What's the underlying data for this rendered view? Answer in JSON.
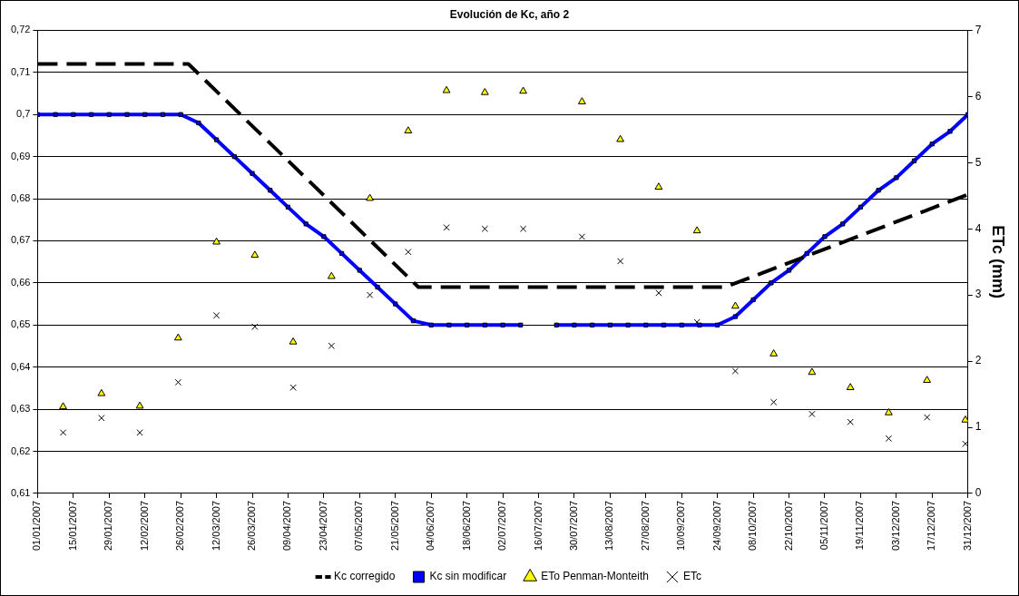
{
  "chart_data": {
    "type": "line",
    "title": "Evolución de Kc, año 2",
    "y2label": "ETc (mm)",
    "xlim": [
      "2007-01-01",
      "2007-12-31"
    ],
    "xticks": [
      {
        "value": "2007-01-01",
        "label": "01/01/2007"
      },
      {
        "value": "2007-01-15",
        "label": "15/01/2007"
      },
      {
        "value": "2007-01-29",
        "label": "29/01/2007"
      },
      {
        "value": "2007-02-12",
        "label": "12/02/2007"
      },
      {
        "value": "2007-02-26",
        "label": "26/02/2007"
      },
      {
        "value": "2007-03-12",
        "label": "12/03/2007"
      },
      {
        "value": "2007-03-26",
        "label": "26/03/2007"
      },
      {
        "value": "2007-04-09",
        "label": "09/04/2007"
      },
      {
        "value": "2007-04-23",
        "label": "23/04/2007"
      },
      {
        "value": "2007-05-07",
        "label": "07/05/2007"
      },
      {
        "value": "2007-05-21",
        "label": "21/05/2007"
      },
      {
        "value": "2007-06-04",
        "label": "04/06/2007"
      },
      {
        "value": "2007-06-18",
        "label": "18/06/2007"
      },
      {
        "value": "2007-07-02",
        "label": "02/07/2007"
      },
      {
        "value": "2007-07-16",
        "label": "16/07/2007"
      },
      {
        "value": "2007-07-30",
        "label": "30/07/2007"
      },
      {
        "value": "2007-08-13",
        "label": "13/08/2007"
      },
      {
        "value": "2007-08-27",
        "label": "27/08/2007"
      },
      {
        "value": "2007-09-10",
        "label": "10/09/2007"
      },
      {
        "value": "2007-09-24",
        "label": "24/09/2007"
      },
      {
        "value": "2007-10-08",
        "label": "08/10/2007"
      },
      {
        "value": "2007-10-22",
        "label": "22/10/2007"
      },
      {
        "value": "2007-11-05",
        "label": "05/11/2007"
      },
      {
        "value": "2007-11-19",
        "label": "19/11/2007"
      },
      {
        "value": "2007-12-03",
        "label": "03/12/2007"
      },
      {
        "value": "2007-12-17",
        "label": "17/12/2007"
      },
      {
        "value": "2007-12-31",
        "label": "31/12/2007"
      }
    ],
    "ylim": [
      0.61,
      0.72
    ],
    "yticks": [
      {
        "value": 0.61,
        "label": "0,61"
      },
      {
        "value": 0.62,
        "label": "0,62"
      },
      {
        "value": 0.63,
        "label": "0,63"
      },
      {
        "value": 0.64,
        "label": "0,64"
      },
      {
        "value": 0.65,
        "label": "0,65"
      },
      {
        "value": 0.66,
        "label": "0,66"
      },
      {
        "value": 0.67,
        "label": "0,67"
      },
      {
        "value": 0.68,
        "label": "0,68"
      },
      {
        "value": 0.69,
        "label": "0,69"
      },
      {
        "value": 0.7,
        "label": "0,7"
      },
      {
        "value": 0.71,
        "label": "0,71"
      },
      {
        "value": 0.72,
        "label": "0,72"
      }
    ],
    "y2lim": [
      0,
      7
    ],
    "y2ticks": [
      0,
      1,
      2,
      3,
      4,
      5,
      6,
      7
    ],
    "grid": "y",
    "legend": "bottom",
    "series": [
      {
        "name": "Kc corregido",
        "type": "line",
        "color": "#000000",
        "line_style": "dashed",
        "marker": "none",
        "x": [
          "2007-01-01",
          "2007-03-01",
          "2007-05-30",
          "2007-09-27",
          "2007-12-31"
        ],
        "values": [
          0.712,
          0.712,
          0.659,
          0.659,
          0.681
        ]
      },
      {
        "name": "Kc sin modificar",
        "type": "line",
        "color": "#0000ff",
        "line_style": "solid",
        "marker": "square",
        "x": [
          "2007-01-01",
          "2007-01-08",
          "2007-01-15",
          "2007-01-22",
          "2007-01-29",
          "2007-02-05",
          "2007-02-12",
          "2007-02-19",
          "2007-02-26",
          "2007-03-05",
          "2007-03-12",
          "2007-03-19",
          "2007-03-26",
          "2007-04-02",
          "2007-04-09",
          "2007-04-16",
          "2007-04-23",
          "2007-04-30",
          "2007-05-07",
          "2007-05-14",
          "2007-05-21",
          "2007-05-28",
          "2007-06-04",
          "2007-06-11",
          "2007-06-18",
          "2007-06-25",
          "2007-07-02",
          "2007-07-09",
          "2007-07-16",
          "2007-07-23",
          "2007-07-30",
          "2007-08-06",
          "2007-08-13",
          "2007-08-20",
          "2007-08-27",
          "2007-09-03",
          "2007-09-10",
          "2007-09-17",
          "2007-09-24",
          "2007-10-01",
          "2007-10-08",
          "2007-10-15",
          "2007-10-22",
          "2007-10-29",
          "2007-11-05",
          "2007-11-12",
          "2007-11-19",
          "2007-11-26",
          "2007-12-03",
          "2007-12-10",
          "2007-12-17",
          "2007-12-24",
          "2007-12-31"
        ],
        "values": [
          0.7,
          0.7,
          0.7,
          0.7,
          0.7,
          0.7,
          0.7,
          0.7,
          0.7,
          0.698,
          0.694,
          0.69,
          0.686,
          0.682,
          0.678,
          0.674,
          0.671,
          0.667,
          0.663,
          0.659,
          0.655,
          0.651,
          0.65,
          0.65,
          0.65,
          0.65,
          0.65,
          0.65,
          null,
          0.65,
          0.65,
          0.65,
          0.65,
          0.65,
          0.65,
          0.65,
          0.65,
          0.65,
          0.65,
          0.652,
          0.656,
          0.66,
          0.663,
          0.667,
          0.671,
          0.674,
          0.678,
          0.682,
          0.685,
          0.689,
          0.693,
          0.696,
          0.7
        ]
      },
      {
        "name": "ETo Penman-Monteith",
        "type": "scatter",
        "axis": "y2",
        "color": "#ffff00",
        "marker": "triangle",
        "x": [
          "2007-01-11",
          "2007-01-26",
          "2007-02-10",
          "2007-02-25",
          "2007-03-12",
          "2007-03-27",
          "2007-04-11",
          "2007-04-26",
          "2007-05-11",
          "2007-05-26",
          "2007-06-10",
          "2007-06-25",
          "2007-07-10",
          "2007-08-02",
          "2007-08-17",
          "2007-09-01",
          "2007-09-16",
          "2007-10-01",
          "2007-10-16",
          "2007-10-31",
          "2007-11-15",
          "2007-11-30",
          "2007-12-15",
          "2007-12-30"
        ],
        "values": [
          1.31,
          1.51,
          1.32,
          2.35,
          3.8,
          3.6,
          2.29,
          3.28,
          4.46,
          5.48,
          6.09,
          6.06,
          6.08,
          5.92,
          5.35,
          4.63,
          3.97,
          2.83,
          2.11,
          1.83,
          1.6,
          1.22,
          1.71,
          1.11
        ]
      },
      {
        "name": "ETc",
        "type": "scatter",
        "axis": "y2",
        "color": "#000000",
        "marker": "cross",
        "x": [
          "2007-01-11",
          "2007-01-26",
          "2007-02-10",
          "2007-02-25",
          "2007-03-12",
          "2007-03-27",
          "2007-04-11",
          "2007-04-26",
          "2007-05-11",
          "2007-05-26",
          "2007-06-10",
          "2007-06-25",
          "2007-07-10",
          "2007-08-02",
          "2007-08-17",
          "2007-09-01",
          "2007-09-16",
          "2007-10-01",
          "2007-10-16",
          "2007-10-31",
          "2007-11-15",
          "2007-11-30",
          "2007-12-15",
          "2007-12-30"
        ],
        "values": [
          0.92,
          1.14,
          0.92,
          1.68,
          2.69,
          2.52,
          1.6,
          2.23,
          3.0,
          3.65,
          4.02,
          4.0,
          4.0,
          3.88,
          3.51,
          3.03,
          2.59,
          1.85,
          1.38,
          1.2,
          1.08,
          0.83,
          1.15,
          0.75
        ]
      }
    ]
  }
}
